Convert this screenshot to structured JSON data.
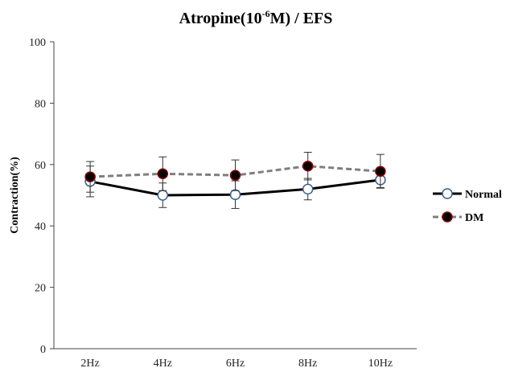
{
  "chart_data": {
    "type": "line",
    "title_main": "Atropine(10",
    "title_sup": "-6",
    "title_rest": "M) / EFS",
    "xlabel": "",
    "ylabel": "Contraction(%)",
    "categories": [
      "2Hz",
      "4Hz",
      "6Hz",
      "8Hz",
      "10Hz"
    ],
    "ylim": [
      0,
      100
    ],
    "yticks": [
      0,
      20,
      40,
      60,
      80,
      100
    ],
    "ytick_labels": [
      "0",
      "20",
      "40",
      "60",
      "80",
      "100"
    ],
    "grid": false,
    "legend_position": "right",
    "series": [
      {
        "name": "Normal",
        "values": [
          54.5,
          50.0,
          50.2,
          52.0,
          55.0
        ],
        "errors": [
          5.0,
          4.0,
          4.5,
          3.5,
          2.5
        ],
        "line_color": "#000000",
        "line_style": "solid",
        "marker_fill": "#ffffff",
        "marker_stroke": "#3a5f8a"
      },
      {
        "name": "DM",
        "values": [
          56.0,
          57.0,
          56.5,
          59.5,
          57.8
        ],
        "errors": [
          5.0,
          5.5,
          5.0,
          4.5,
          5.5
        ],
        "line_color": "#7f7f7f",
        "line_style": "dashed",
        "marker_fill": "#000000",
        "marker_stroke": "#8b0000"
      }
    ]
  }
}
